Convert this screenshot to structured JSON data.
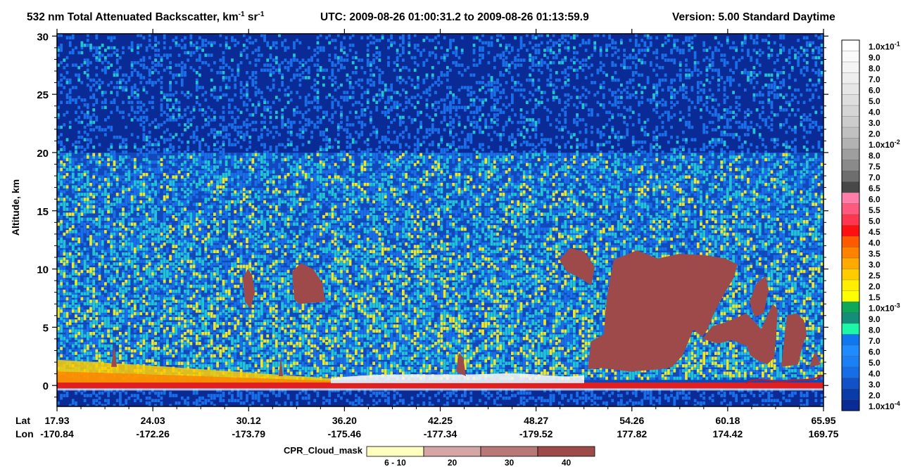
{
  "chart_data": {
    "type": "heatmap",
    "title": {
      "pre": "532 nm Total Attenuated Backscatter, km",
      "sup1": "-1",
      "mid": " sr",
      "sup2": "-1",
      "utc": "UTC:  2009-08-26 01:00:31.2  to  2009-08-26 01:13:59.9",
      "version": "Version: 5.00  Standard  Daytime"
    },
    "ylabel": "Altitude, km",
    "ylim": [
      -1.8,
      30.2
    ],
    "yticks": [
      "0",
      "5",
      "10",
      "15",
      "20",
      "25",
      "30"
    ],
    "ytick_values": [
      0,
      5,
      10,
      15,
      20,
      25,
      30
    ],
    "x_row_labels": {
      "lat": "Lat",
      "lon": "Lon"
    },
    "x_ticks": [
      {
        "lat": "17.93",
        "lon": "-170.84"
      },
      {
        "lat": "24.03",
        "lon": "-172.26"
      },
      {
        "lat": "30.12",
        "lon": "-173.79"
      },
      {
        "lat": "36.20",
        "lon": "-175.46"
      },
      {
        "lat": "42.25",
        "lon": "-177.34"
      },
      {
        "lat": "48.27",
        "lon": "-179.52"
      },
      {
        "lat": "54.26",
        "lon": "177.82"
      },
      {
        "lat": "60.18",
        "lon": "174.42"
      },
      {
        "lat": "65.95",
        "lon": "169.75"
      }
    ],
    "colorbar": [
      {
        "label": "1.0x10",
        "exp": "-1",
        "color": "#ffffff"
      },
      {
        "label": "9.0",
        "color": "#fafafa"
      },
      {
        "label": "8.0",
        "color": "#f4f4f4"
      },
      {
        "label": "7.0",
        "color": "#eeeeee"
      },
      {
        "label": "6.0",
        "color": "#e6e6e6"
      },
      {
        "label": "5.0",
        "color": "#dedede"
      },
      {
        "label": "4.0",
        "color": "#d5d5d5"
      },
      {
        "label": "3.0",
        "color": "#cccccc"
      },
      {
        "label": "2.0",
        "color": "#c0c0c0"
      },
      {
        "label": "1.0x10",
        "exp": "-2",
        "color": "#b2b2b2"
      },
      {
        "label": "8.0",
        "color": "#9e9e9e"
      },
      {
        "label": "7.5",
        "color": "#8a8a8a"
      },
      {
        "label": "7.0",
        "color": "#6e6e6e"
      },
      {
        "label": "6.5",
        "color": "#484848"
      },
      {
        "label": "6.0",
        "color": "#ff7eaa"
      },
      {
        "label": "5.5",
        "color": "#ff5a7e"
      },
      {
        "label": "5.0",
        "color": "#ff3650"
      },
      {
        "label": "4.5",
        "color": "#ff1010"
      },
      {
        "label": "4.0",
        "color": "#ff5a00"
      },
      {
        "label": "3.5",
        "color": "#ff8200"
      },
      {
        "label": "3.0",
        "color": "#ffaa00"
      },
      {
        "label": "2.5",
        "color": "#ffcc00"
      },
      {
        "label": "2.0",
        "color": "#ffee00"
      },
      {
        "label": "1.5",
        "color": "#ffff00"
      },
      {
        "label": "1.0x10",
        "exp": "-3",
        "color": "#0ea858"
      },
      {
        "label": "9.0",
        "color": "#148e78"
      },
      {
        "label": "8.0",
        "color": "#1cf8a8"
      },
      {
        "label": "7.0",
        "color": "#1078ee"
      },
      {
        "label": "6.0",
        "color": "#1e8cff"
      },
      {
        "label": "5.0",
        "color": "#1a80f4"
      },
      {
        "label": "4.0",
        "color": "#156ee6"
      },
      {
        "label": "3.0",
        "color": "#1252c8"
      },
      {
        "label": "2.0",
        "color": "#0a3ca8"
      },
      {
        "label": "1.0x10",
        "exp": "-4",
        "color": "#0a2a96"
      }
    ],
    "cloud_mask": {
      "label": "CPR_Cloud_mask",
      "bins": [
        {
          "label": "6 - 10",
          "color": "#ffffc0"
        },
        {
          "label": "20",
          "color": "#d4a6a6"
        },
        {
          "label": "30",
          "color": "#b87878"
        },
        {
          "label": "40",
          "color": "#9e4a4a"
        }
      ]
    },
    "colors": {
      "background_deep": "#0a2a96",
      "background_mid": "#1a63d8",
      "noise_cyan": "#23c3d6",
      "noise_yellow": "#e8e830",
      "surface_red": "#e02020",
      "cloud_mask_40": "#9e4a4a"
    },
    "grid": false
  }
}
